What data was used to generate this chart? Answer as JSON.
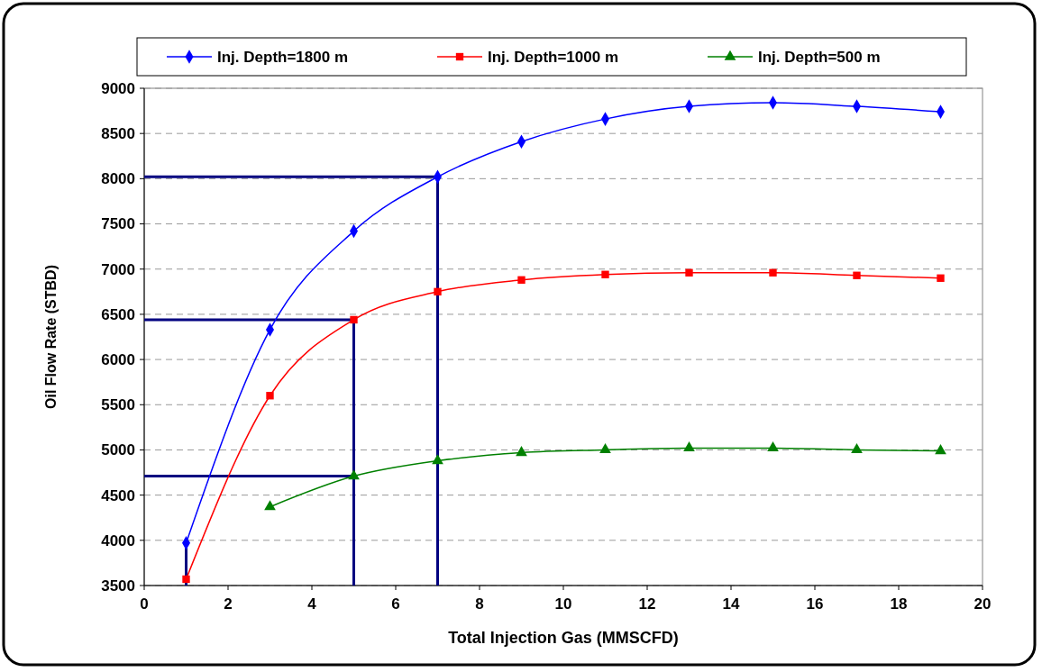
{
  "chart_data": {
    "type": "line",
    "xlabel": "Total Injection Gas (MMSCFD)",
    "ylabel": "Oil Flow Rate (STBD)",
    "x": [
      1,
      3,
      5,
      7,
      9,
      11,
      13,
      15,
      17,
      19
    ],
    "series": [
      {
        "name": "Inj. Depth=1800 m",
        "color": "#0000ff",
        "marker": "diamond",
        "values": [
          3970,
          6330,
          7420,
          8020,
          8410,
          8660,
          8800,
          8840,
          8800,
          8740
        ]
      },
      {
        "name": "Inj. Depth=1000 m",
        "color": "#ff0000",
        "marker": "square",
        "values": [
          3570,
          5600,
          6440,
          6750,
          6880,
          6940,
          6960,
          6960,
          6930,
          6900
        ]
      },
      {
        "name": "Inj. Depth=500 m",
        "color": "#008000",
        "marker": "triangle",
        "values": [
          null,
          4370,
          4710,
          4880,
          4970,
          5000,
          5020,
          5020,
          5000,
          4990
        ]
      }
    ],
    "xlim": [
      0,
      20
    ],
    "xticks": [
      0,
      2,
      4,
      6,
      8,
      10,
      12,
      14,
      16,
      18,
      20
    ],
    "ylim": [
      3500,
      9000
    ],
    "yticks": [
      3500,
      4000,
      4500,
      5000,
      5500,
      6000,
      6500,
      7000,
      7500,
      8000,
      8500,
      9000
    ],
    "grid": "y",
    "legend": "top",
    "line_style": "solid",
    "ref_lines": [
      {
        "axis": "x",
        "value": 1,
        "color": "#000080"
      },
      {
        "axis": "x",
        "value": 5,
        "color": "#000080"
      },
      {
        "axis": "x",
        "value": 7,
        "color": "#000080"
      },
      {
        "axis": "y",
        "value": 8020,
        "color": "#000080"
      },
      {
        "axis": "y",
        "value": 6440,
        "color": "#000080"
      },
      {
        "axis": "y",
        "value": 4710,
        "color": "#000080"
      }
    ]
  }
}
